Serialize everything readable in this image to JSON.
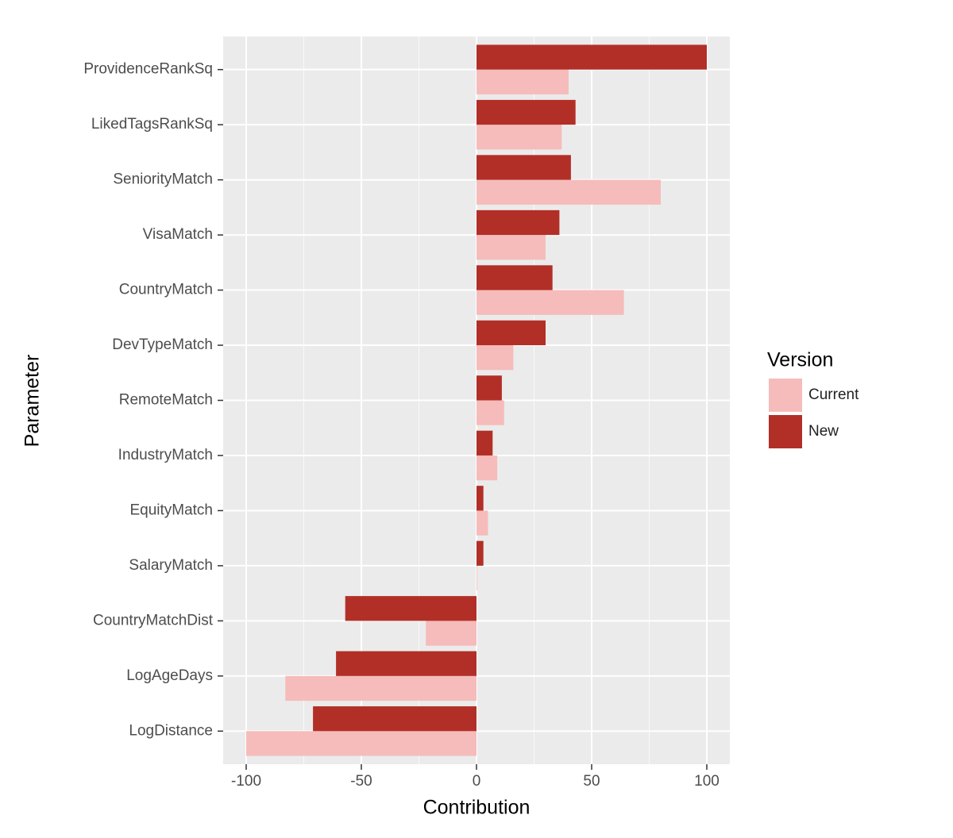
{
  "chart_data": {
    "type": "hbar",
    "x_label": "Contribution",
    "y_label": "Parameter",
    "categories": [
      "ProvidenceRankSq",
      "LikedTagsRankSq",
      "SeniorityMatch",
      "VisaMatch",
      "CountryMatch",
      "DevTypeMatch",
      "RemoteMatch",
      "IndustryMatch",
      "EquityMatch",
      "SalaryMatch",
      "CountryMatchDist",
      "LogAgeDays",
      "LogDistance"
    ],
    "legend_title": "Version",
    "series": [
      {
        "name": "Current",
        "color": "#f5bcbb",
        "values": [
          40,
          37,
          80,
          30,
          64,
          16,
          12,
          9,
          5,
          0.3,
          -22,
          -83,
          -100
        ]
      },
      {
        "name": "New",
        "color": "#b22f27",
        "values": [
          100,
          43,
          41,
          36,
          33,
          30,
          11,
          7,
          3,
          3,
          -57,
          -61,
          -71
        ]
      }
    ],
    "xlim": [
      -110,
      110
    ],
    "xticks": [
      -100,
      -50,
      0,
      50,
      100
    ],
    "grid": true,
    "legend": "right"
  }
}
